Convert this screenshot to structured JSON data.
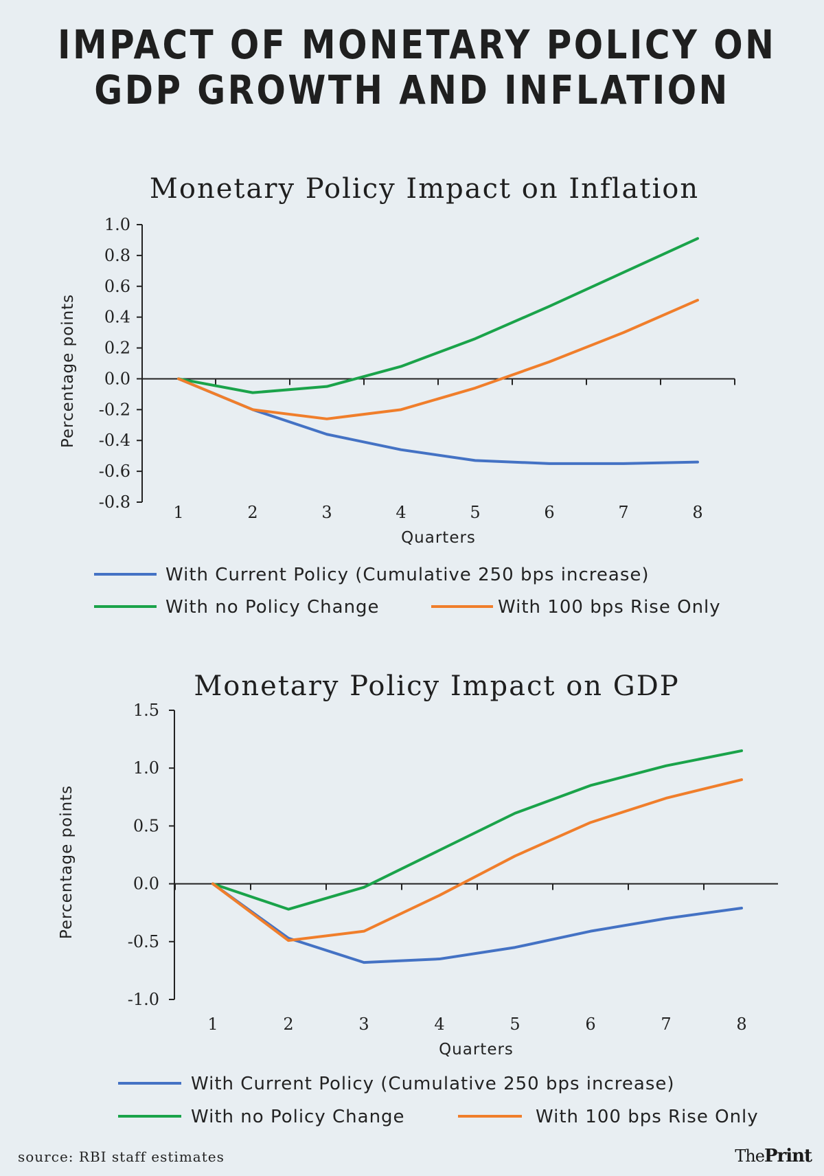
{
  "header": {
    "title_line1": "IMPACT OF MONETARY POLICY ON",
    "title_line2": "GDP GROWTH AND INFLATION"
  },
  "footer": {
    "source": "source: RBI staff estimates",
    "logo_the": "The",
    "logo_print": "Print"
  },
  "chart_data": [
    {
      "type": "line",
      "title": "Monetary Policy Impact on Inflation",
      "xlabel": "Quarters",
      "ylabel": "Percentage points",
      "x": [
        1,
        2,
        3,
        4,
        5,
        6,
        7,
        8
      ],
      "ylim": [
        -0.8,
        1.0
      ],
      "yticks": [
        "1.0",
        "0.8",
        "0.6",
        "0.4",
        "0.2",
        "0.0",
        "-0.2",
        "-0.4",
        "-0.6",
        "-0.8"
      ],
      "ytick_values": [
        1.0,
        0.8,
        0.6,
        0.4,
        0.2,
        0.0,
        -0.2,
        -0.4,
        -0.6,
        -0.8
      ],
      "series": [
        {
          "name": "With Current Policy (Cumulative 250 bps increase)",
          "color": "#4472c4",
          "values": [
            0.0,
            -0.2,
            -0.36,
            -0.46,
            -0.53,
            -0.55,
            -0.55,
            -0.54
          ]
        },
        {
          "name": "With no Policy Change",
          "color": "#1aa34a",
          "values": [
            0.0,
            -0.09,
            -0.05,
            0.08,
            0.26,
            0.47,
            0.69,
            0.91
          ]
        },
        {
          "name": "With 100 bps Rise Only",
          "color": "#f07e2b",
          "values": [
            0.0,
            -0.2,
            -0.26,
            -0.2,
            -0.06,
            0.11,
            0.3,
            0.51
          ]
        }
      ]
    },
    {
      "type": "line",
      "title": "Monetary Policy Impact on GDP",
      "xlabel": "Quarters",
      "ylabel": "Percentage points",
      "x": [
        1,
        2,
        3,
        4,
        5,
        6,
        7,
        8
      ],
      "ylim": [
        -1.0,
        1.5
      ],
      "yticks": [
        "1.5",
        "1.0",
        "0.5",
        "0.0",
        "-0.5",
        "-1.0"
      ],
      "ytick_values": [
        1.5,
        1.0,
        0.5,
        0.0,
        -0.5,
        -1.0
      ],
      "series": [
        {
          "name": "With Current Policy (Cumulative 250 bps increase)",
          "color": "#4472c4",
          "values": [
            0.0,
            -0.47,
            -0.68,
            -0.65,
            -0.55,
            -0.41,
            -0.3,
            -0.21
          ]
        },
        {
          "name": "With no Policy Change",
          "color": "#1aa34a",
          "values": [
            0.0,
            -0.22,
            -0.03,
            0.29,
            0.61,
            0.85,
            1.02,
            1.15
          ]
        },
        {
          "name": "With 100 bps Rise Only",
          "color": "#f07e2b",
          "values": [
            0.0,
            -0.49,
            -0.41,
            -0.1,
            0.24,
            0.53,
            0.74,
            0.9
          ]
        }
      ]
    }
  ]
}
